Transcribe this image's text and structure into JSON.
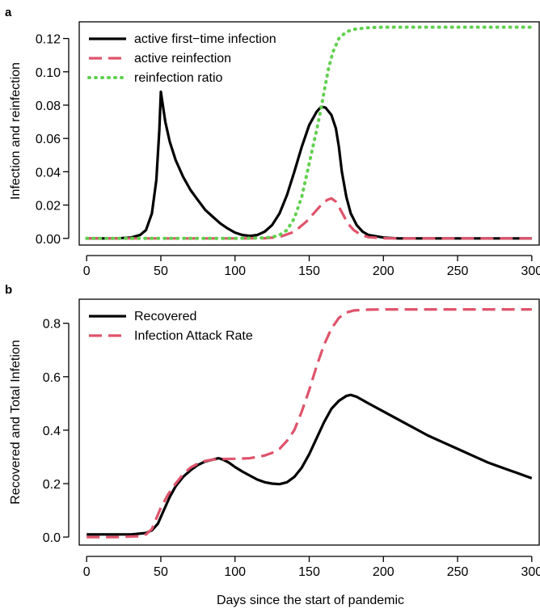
{
  "chart_data": [
    {
      "panel": "a",
      "type": "line",
      "title": "",
      "xlabel": "",
      "ylabel": "Infection and reinfection",
      "xlim": [
        -5,
        305
      ],
      "ylim": [
        -0.004,
        0.13
      ],
      "xticks": [
        "0",
        "50",
        "100",
        "150",
        "200",
        "250",
        "300"
      ],
      "yticks": [
        "0.00",
        "0.02",
        "0.04",
        "0.06",
        "0.08",
        "0.10",
        "0.12"
      ],
      "legend_position": "top-left",
      "series": [
        {
          "name": "active first−time infection",
          "color": "#000000",
          "style": "solid",
          "points": [
            [
              0,
              0
            ],
            [
              10,
              0
            ],
            [
              20,
              0
            ],
            [
              30,
              0.0005
            ],
            [
              36,
              0.002
            ],
            [
              40,
              0.005
            ],
            [
              44,
              0.015
            ],
            [
              47,
              0.035
            ],
            [
              49,
              0.065
            ],
            [
              50,
              0.088
            ],
            [
              51,
              0.082
            ],
            [
              53,
              0.07
            ],
            [
              56,
              0.058
            ],
            [
              60,
              0.047
            ],
            [
              65,
              0.037
            ],
            [
              70,
              0.029
            ],
            [
              75,
              0.023
            ],
            [
              80,
              0.017
            ],
            [
              85,
              0.013
            ],
            [
              90,
              0.009
            ],
            [
              95,
              0.006
            ],
            [
              100,
              0.0035
            ],
            [
              105,
              0.002
            ],
            [
              110,
              0.0015
            ],
            [
              115,
              0.002
            ],
            [
              120,
              0.004
            ],
            [
              125,
              0.008
            ],
            [
              130,
              0.015
            ],
            [
              135,
              0.026
            ],
            [
              140,
              0.04
            ],
            [
              145,
              0.055
            ],
            [
              150,
              0.068
            ],
            [
              155,
              0.076
            ],
            [
              158,
              0.079
            ],
            [
              161,
              0.0785
            ],
            [
              165,
              0.074
            ],
            [
              168,
              0.066
            ],
            [
              170,
              0.055
            ],
            [
              172,
              0.04
            ],
            [
              175,
              0.025
            ],
            [
              178,
              0.015
            ],
            [
              182,
              0.008
            ],
            [
              186,
              0.004
            ],
            [
              190,
              0.002
            ],
            [
              200,
              0.0005
            ],
            [
              210,
              0
            ],
            [
              220,
              0
            ],
            [
              230,
              0
            ],
            [
              250,
              0
            ],
            [
              275,
              0
            ],
            [
              300,
              0
            ]
          ]
        },
        {
          "name": "active reinfection",
          "color": "#df536b",
          "style": "dashed",
          "points": [
            [
              0,
              0
            ],
            [
              50,
              0
            ],
            [
              100,
              0
            ],
            [
              120,
              0.0001
            ],
            [
              130,
              0.0008
            ],
            [
              140,
              0.004
            ],
            [
              148,
              0.01
            ],
            [
              153,
              0.015
            ],
            [
              158,
              0.02
            ],
            [
              162,
              0.023
            ],
            [
              165,
              0.024
            ],
            [
              168,
              0.022
            ],
            [
              170,
              0.019
            ],
            [
              173,
              0.014
            ],
            [
              176,
              0.009
            ],
            [
              180,
              0.005
            ],
            [
              185,
              0.002
            ],
            [
              190,
              0.0007
            ],
            [
              200,
              0.0001
            ],
            [
              210,
              0
            ],
            [
              250,
              0
            ],
            [
              300,
              0
            ]
          ]
        },
        {
          "name": "reinfection ratio",
          "color": "#61d04f",
          "style": "dotted",
          "points": [
            [
              0,
              0
            ],
            [
              50,
              0
            ],
            [
              100,
              0
            ],
            [
              120,
              0.0003
            ],
            [
              126,
              0.001
            ],
            [
              130,
              0.002
            ],
            [
              135,
              0.005
            ],
            [
              140,
              0.012
            ],
            [
              145,
              0.025
            ],
            [
              150,
              0.045
            ],
            [
              155,
              0.065
            ],
            [
              158,
              0.078
            ],
            [
              160,
              0.088
            ],
            [
              163,
              0.102
            ],
            [
              166,
              0.112
            ],
            [
              170,
              0.12
            ],
            [
              175,
              0.124
            ],
            [
              180,
              0.1255
            ],
            [
              185,
              0.126
            ],
            [
              190,
              0.1265
            ],
            [
              200,
              0.1268
            ],
            [
              250,
              0.1268
            ],
            [
              300,
              0.1268
            ]
          ]
        }
      ]
    },
    {
      "panel": "b",
      "type": "line",
      "title": "",
      "xlabel": "Days since the start of pandemic",
      "ylabel": "Recovered and Total Infetion",
      "xlim": [
        -5,
        305
      ],
      "ylim": [
        -0.03,
        0.89
      ],
      "xticks": [
        "0",
        "50",
        "100",
        "150",
        "200",
        "250",
        "300"
      ],
      "yticks": [
        "0.0",
        "0.2",
        "0.4",
        "0.6",
        "0.8"
      ],
      "legend_position": "top-left",
      "series": [
        {
          "name": "Recovered",
          "color": "#000000",
          "style": "solid",
          "points": [
            [
              0,
              0.01
            ],
            [
              20,
              0.01
            ],
            [
              30,
              0.01
            ],
            [
              40,
              0.015
            ],
            [
              44,
              0.025
            ],
            [
              48,
              0.05
            ],
            [
              52,
              0.1
            ],
            [
              56,
              0.15
            ],
            [
              60,
              0.19
            ],
            [
              65,
              0.225
            ],
            [
              70,
              0.25
            ],
            [
              75,
              0.27
            ],
            [
              80,
              0.283
            ],
            [
              85,
              0.29
            ],
            [
              89,
              0.295
            ],
            [
              92,
              0.29
            ],
            [
              96,
              0.278
            ],
            [
              100,
              0.262
            ],
            [
              105,
              0.245
            ],
            [
              110,
              0.23
            ],
            [
              115,
              0.215
            ],
            [
              120,
              0.205
            ],
            [
              125,
              0.2
            ],
            [
              130,
              0.198
            ],
            [
              135,
              0.205
            ],
            [
              140,
              0.225
            ],
            [
              145,
              0.26
            ],
            [
              150,
              0.31
            ],
            [
              155,
              0.37
            ],
            [
              160,
              0.43
            ],
            [
              165,
              0.48
            ],
            [
              170,
              0.51
            ],
            [
              175,
              0.528
            ],
            [
              178,
              0.532
            ],
            [
              182,
              0.525
            ],
            [
              190,
              0.5
            ],
            [
              200,
              0.47
            ],
            [
              210,
              0.44
            ],
            [
              220,
              0.41
            ],
            [
              230,
              0.38
            ],
            [
              240,
              0.355
            ],
            [
              250,
              0.33
            ],
            [
              260,
              0.305
            ],
            [
              270,
              0.28
            ],
            [
              280,
              0.26
            ],
            [
              290,
              0.24
            ],
            [
              300,
              0.22
            ]
          ]
        },
        {
          "name": "Infection Attack Rate",
          "color": "#df536b",
          "style": "dashed",
          "points": [
            [
              0,
              0
            ],
            [
              20,
              0
            ],
            [
              35,
              0.003
            ],
            [
              40,
              0.01
            ],
            [
              44,
              0.03
            ],
            [
              47,
              0.07
            ],
            [
              50,
              0.11
            ],
            [
              55,
              0.16
            ],
            [
              60,
              0.2
            ],
            [
              65,
              0.235
            ],
            [
              70,
              0.26
            ],
            [
              75,
              0.275
            ],
            [
              80,
              0.285
            ],
            [
              85,
              0.29
            ],
            [
              90,
              0.292
            ],
            [
              100,
              0.293
            ],
            [
              110,
              0.295
            ],
            [
              120,
              0.305
            ],
            [
              125,
              0.315
            ],
            [
              130,
              0.33
            ],
            [
              135,
              0.36
            ],
            [
              140,
              0.4
            ],
            [
              145,
              0.47
            ],
            [
              150,
              0.55
            ],
            [
              155,
              0.64
            ],
            [
              160,
              0.72
            ],
            [
              165,
              0.78
            ],
            [
              170,
              0.82
            ],
            [
              175,
              0.84
            ],
            [
              180,
              0.848
            ],
            [
              190,
              0.851
            ],
            [
              200,
              0.852
            ],
            [
              250,
              0.852
            ],
            [
              300,
              0.852
            ]
          ]
        }
      ]
    }
  ]
}
